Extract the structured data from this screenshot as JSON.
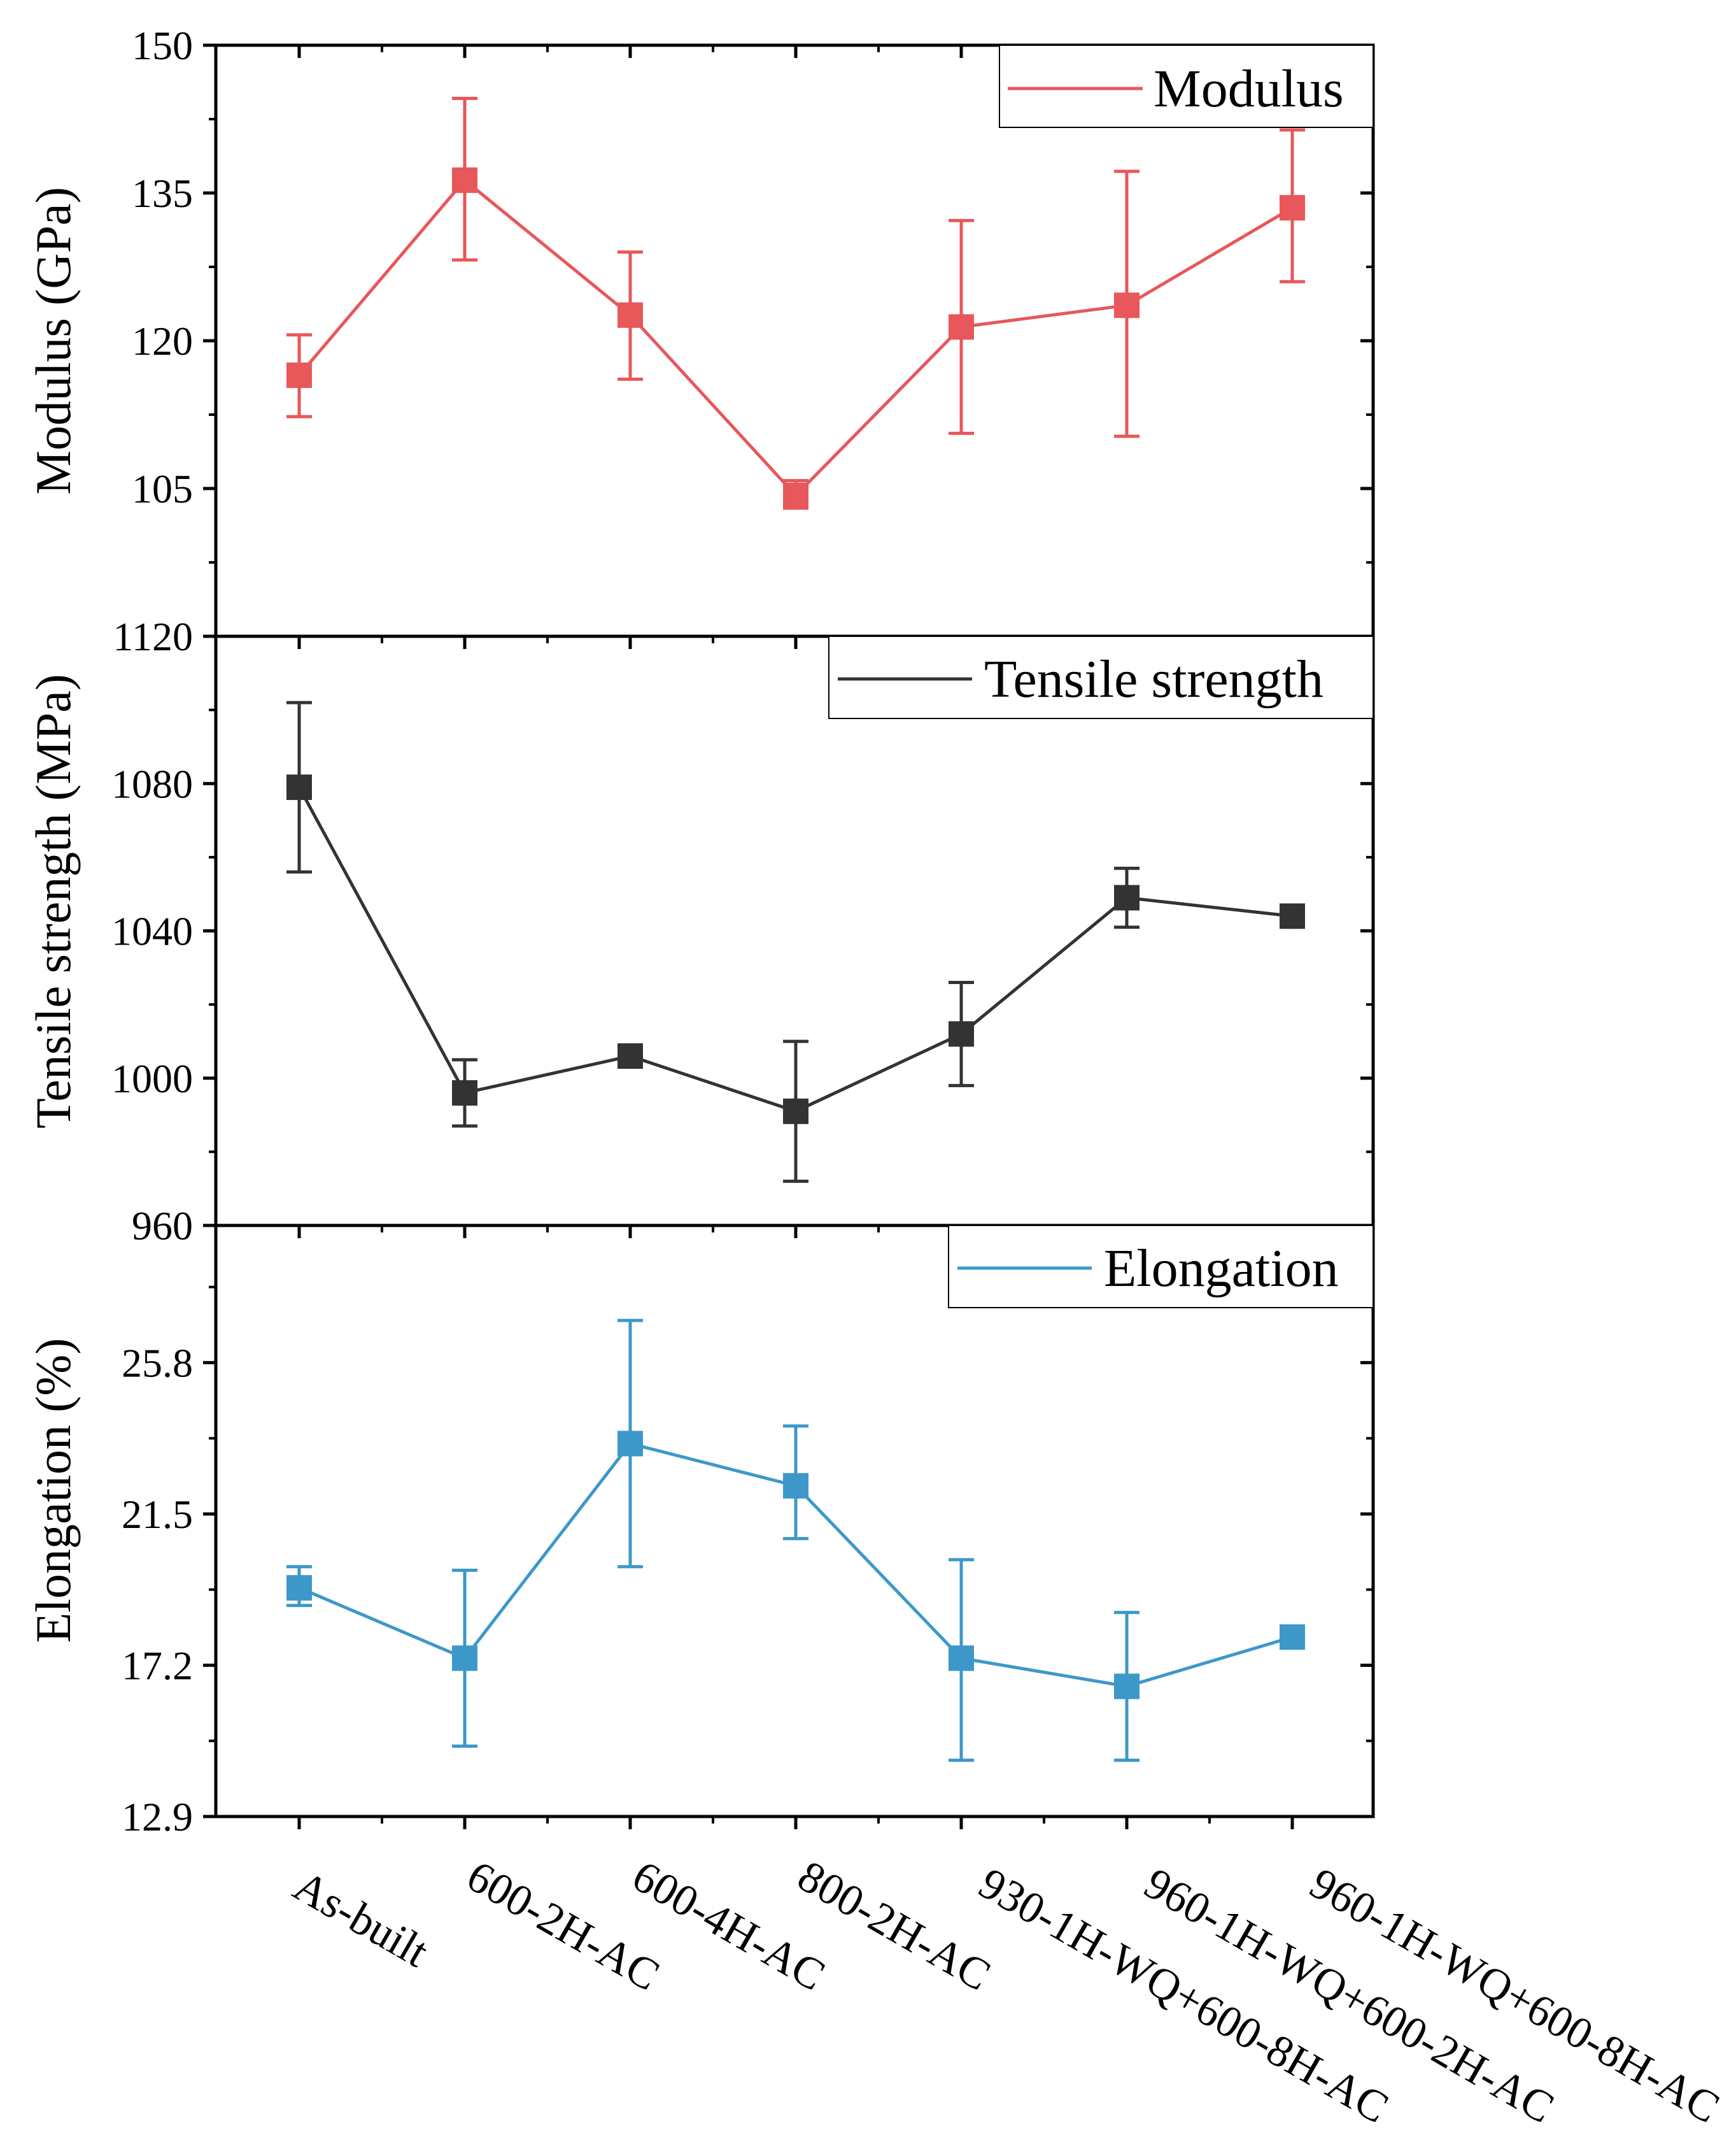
{
  "chart_data": [
    {
      "type": "line",
      "panel": "top",
      "title": "",
      "xlabel": "",
      "ylabel": "Modulus (GPa)",
      "ylim": [
        90,
        150
      ],
      "yticks": [
        "150",
        "135",
        "120",
        "105"
      ],
      "ytick_values": [
        150,
        135,
        120,
        105
      ],
      "categories": [
        "As-built",
        "600-2H-AC",
        "600-4H-AC",
        "800-2H-AC",
        "930-1H-WQ+600-8H-AC",
        "960-1H-WQ+600-2H-AC",
        "960-1H-WQ+600-8H-AC"
      ],
      "legend": {
        "position": "top-right",
        "entries": [
          "Modulus"
        ]
      },
      "series": [
        {
          "name": "Modulus",
          "color": "#E8575A",
          "marker": "square",
          "values": [
            116.5,
            136.3,
            122.6,
            104.3,
            121.4,
            123.6,
            133.5
          ],
          "err_low": [
            112.3,
            128.2,
            116.1,
            103.0,
            110.6,
            110.3,
            126.0
          ],
          "err_high": [
            120.6,
            144.6,
            129.0,
            105.8,
            132.2,
            137.2,
            141.4
          ]
        }
      ]
    },
    {
      "type": "line",
      "panel": "middle",
      "title": "",
      "xlabel": "",
      "ylabel": "Tensile strength (MPa)",
      "ylim": [
        960,
        1120
      ],
      "yticks": [
        "1120",
        "1080",
        "1040",
        "1000",
        "960"
      ],
      "ytick_values": [
        1120,
        1080,
        1040,
        1000,
        960
      ],
      "categories": [
        "As-built",
        "600-2H-AC",
        "600-4H-AC",
        "800-2H-AC",
        "930-1H-WQ+600-8H-AC",
        "960-1H-WQ+600-2H-AC",
        "960-1H-WQ+600-8H-AC"
      ],
      "legend": {
        "position": "top-right",
        "entries": [
          "Tensile strength"
        ]
      },
      "series": [
        {
          "name": "Tensile strength",
          "color": "#333333",
          "marker": "square",
          "values": [
            1079,
            996,
            1006,
            991,
            1012,
            1049,
            1044
          ],
          "err_low": [
            1056,
            987,
            1004,
            972,
            998,
            1041,
            1043
          ],
          "err_high": [
            1102,
            1005,
            1009,
            1010,
            1026,
            1057,
            1046
          ]
        }
      ]
    },
    {
      "type": "line",
      "panel": "bottom",
      "title": "",
      "xlabel": "",
      "ylabel": "Elongation (%)",
      "ylim": [
        12.9,
        29.7
      ],
      "yticks": [
        "25.8",
        "21.5",
        "17.2",
        "12.9"
      ],
      "ytick_values": [
        25.8,
        21.5,
        17.2,
        12.9
      ],
      "categories": [
        "As-built",
        "600-2H-AC",
        "600-4H-AC",
        "800-2H-AC",
        "930-1H-WQ+600-8H-AC",
        "960-1H-WQ+600-2H-AC",
        "960-1H-WQ+600-8H-AC"
      ],
      "legend": {
        "position": "top-right",
        "entries": [
          "Elongation"
        ]
      },
      "series": [
        {
          "name": "Elongation",
          "color": "#3D98C9",
          "marker": "square",
          "values": [
            19.4,
            17.4,
            23.5,
            22.3,
            17.4,
            16.6,
            18.0
          ],
          "err_low": [
            18.9,
            14.9,
            20.0,
            20.8,
            14.5,
            14.5,
            18.0
          ],
          "err_high": [
            20.0,
            19.9,
            27.0,
            24.0,
            20.2,
            18.7,
            18.0
          ]
        }
      ]
    }
  ]
}
